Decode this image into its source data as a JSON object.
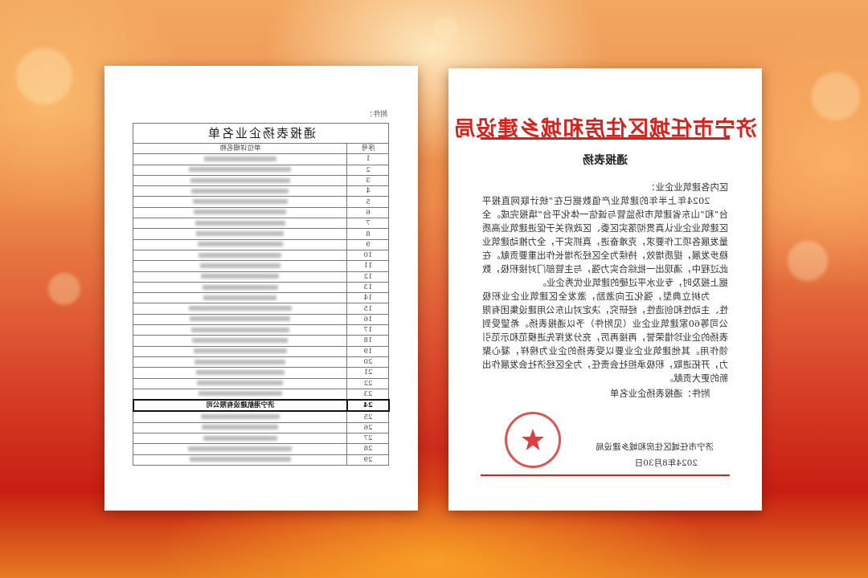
{
  "list_page": {
    "attachment_label": "附件：",
    "title": "通报表扬企业名单",
    "col_name": "单位详细名称",
    "col_number": "序号",
    "rows": [
      {
        "no": "1"
      },
      {
        "no": "2"
      },
      {
        "no": "3"
      },
      {
        "no": "4"
      },
      {
        "no": "5"
      },
      {
        "no": "6"
      },
      {
        "no": "7"
      },
      {
        "no": "8"
      },
      {
        "no": "9"
      },
      {
        "no": "10"
      },
      {
        "no": "11"
      },
      {
        "no": "12"
      },
      {
        "no": "13"
      },
      {
        "no": "14"
      },
      {
        "no": "15"
      },
      {
        "no": "16"
      },
      {
        "no": "17"
      },
      {
        "no": "18"
      },
      {
        "no": "19"
      },
      {
        "no": "20"
      },
      {
        "no": "21"
      },
      {
        "no": "22"
      },
      {
        "no": "23"
      },
      {
        "no": "24",
        "name": "济宁港航建设有限公司",
        "highlighted": true
      },
      {
        "no": "25"
      },
      {
        "no": "26"
      },
      {
        "no": "27"
      },
      {
        "no": "28"
      },
      {
        "no": "29"
      }
    ]
  },
  "letter_page": {
    "header": "济宁市任城区住房和城乡建设局",
    "subject": "通报表扬",
    "greeting": "区内各建筑业企业：",
    "paragraph1": "2024年上半年的建筑业产值数据已在“统计联网直报平台”和“山东省建筑市场监管与诚信一体化平台”填报完成。全区建筑业企业认真贯彻落实区委、区政府关于促进建筑业高质量发展各项工作要求，克难奋进，真抓实干，全力推动建筑业稳步发展，提质增效，持续为全区经济增长作出重要贡献。在此过程中，涌现出一批综合实力强，与主管部门对接积极，数据上报及时，专业水平过硬的建筑业优秀企业。",
    "paragraph2": "为树立典型，强化正向激励，激发全区建筑业企业积极性、主动性和创造性，经研究，决定对山东公用建设集团有限公司等60家建筑业企业（见附件）予以通报表扬。希望受到表扬的企业珍惜荣誉，再接再厉，充分发挥先进模范和示范引领作用。其他建筑业企业要以受表扬的企业为榜样，凝心聚力，开拓进取，积极承担社会责任，为全区经济社会发展作出新的更大贡献。",
    "attachment": "附件：通报表扬企业名单",
    "signature": "济宁市任城区住房和城乡建设局",
    "date": "2024年8月30日",
    "seal_text": "济宁市任城区住房和城乡建设局"
  },
  "colors": {
    "header_red": "#d4231c",
    "background": "#d9442a"
  }
}
